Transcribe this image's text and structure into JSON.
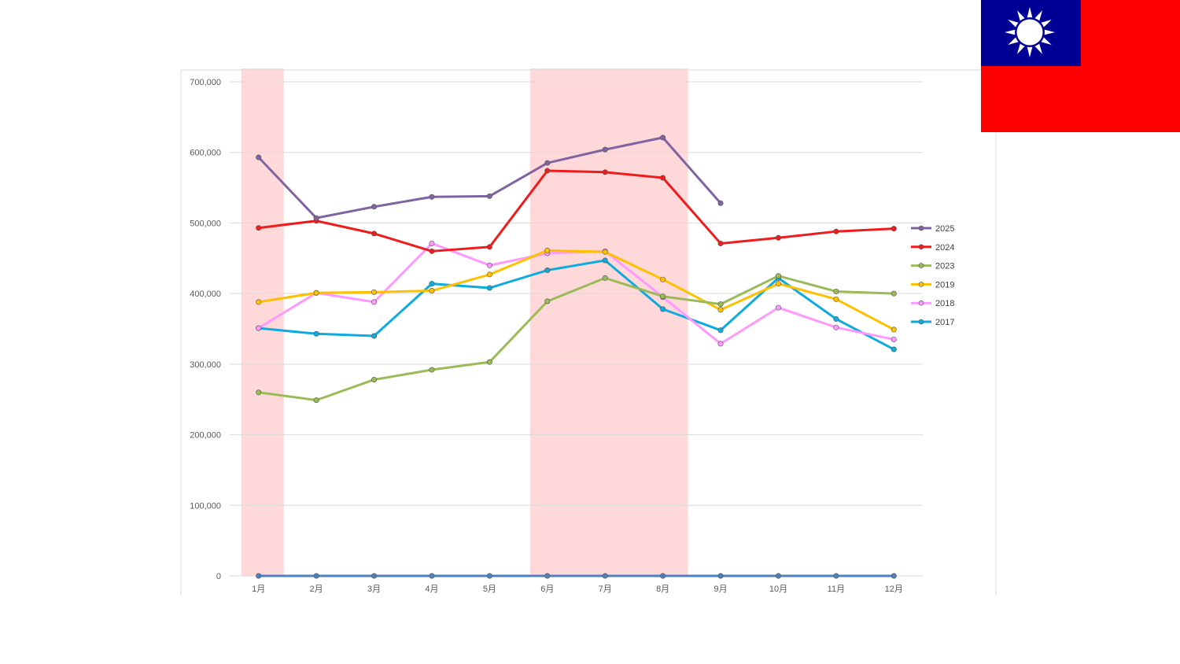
{
  "flag": {
    "icon": "taiwan-flag-icon",
    "colors": {
      "red": "#FE0000",
      "blue": "#000095",
      "white": "#FFFFFF"
    }
  },
  "chart_data": {
    "type": "line",
    "title": "",
    "xlabel": "",
    "ylabel": "",
    "ylim": [
      0,
      700000
    ],
    "yticks": [
      0,
      100000,
      200000,
      300000,
      400000,
      500000,
      600000,
      700000
    ],
    "ytick_labels": [
      "0",
      "100,000",
      "200,000",
      "300,000",
      "400,000",
      "500,000",
      "600,000",
      "700,000"
    ],
    "grid": true,
    "legend_position": "right",
    "categories": [
      "1月",
      "2月",
      "3月",
      "4月",
      "5月",
      "6月",
      "7月",
      "8月",
      "9月",
      "10月",
      "11月",
      "12月"
    ],
    "highlight_bands": [
      {
        "from": "1月",
        "to": "1月",
        "color": "#FFD9DA"
      },
      {
        "from": "6月",
        "to": "8月",
        "color": "#FFD9DA"
      }
    ],
    "series": [
      {
        "name": "2025",
        "color": "#8064A2",
        "values": [
          593000,
          507000,
          523000,
          537000,
          538000,
          585000,
          604000,
          621000,
          528000,
          null,
          null,
          null
        ]
      },
      {
        "name": "2024",
        "color": "#EE1C1C",
        "values": [
          493000,
          503000,
          485000,
          460000,
          466000,
          574000,
          572000,
          564000,
          471000,
          479000,
          488000,
          492000
        ]
      },
      {
        "name": "2023",
        "color": "#9BBB59",
        "values": [
          260000,
          249000,
          278000,
          292000,
          303000,
          389000,
          422000,
          396000,
          385000,
          425000,
          403000,
          400000
        ]
      },
      {
        "name": "2019",
        "color": "#FFC000",
        "values": [
          388000,
          401000,
          402000,
          404000,
          427000,
          461000,
          459000,
          420000,
          377000,
          414000,
          392000,
          349000
        ]
      },
      {
        "name": "2018",
        "color": "#FF99FF",
        "values": [
          351000,
          401000,
          388000,
          471000,
          440000,
          457000,
          460000,
          395000,
          329000,
          380000,
          352000,
          335000
        ]
      },
      {
        "name": "2017",
        "color": "#0EABDF",
        "values": [
          351000,
          343000,
          340000,
          414000,
          408000,
          433000,
          447000,
          378000,
          348000,
          422000,
          364000,
          321000
        ]
      },
      {
        "name": "",
        "color": "#4F81BD",
        "values": [
          0,
          0,
          0,
          0,
          0,
          0,
          0,
          0,
          0,
          0,
          0,
          0
        ]
      }
    ]
  }
}
